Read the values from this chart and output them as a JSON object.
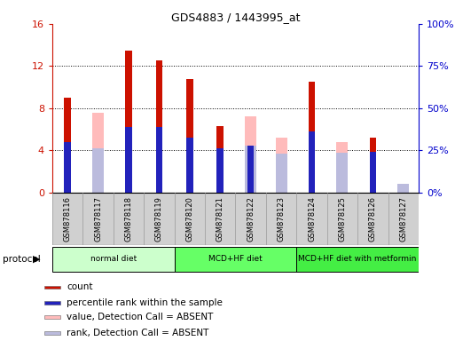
{
  "title": "GDS4883 / 1443995_at",
  "samples": [
    "GSM878116",
    "GSM878117",
    "GSM878118",
    "GSM878119",
    "GSM878120",
    "GSM878121",
    "GSM878122",
    "GSM878123",
    "GSM878124",
    "GSM878125",
    "GSM878126",
    "GSM878127"
  ],
  "count_values": [
    9.0,
    0,
    13.5,
    12.5,
    10.8,
    6.3,
    0,
    0,
    10.5,
    0,
    5.2,
    0
  ],
  "percentile_values": [
    4.8,
    0,
    6.2,
    6.2,
    5.2,
    4.2,
    4.5,
    0,
    5.8,
    0,
    3.9,
    0
  ],
  "absent_value_values": [
    0,
    7.6,
    0,
    0,
    0,
    0,
    7.2,
    5.2,
    0,
    4.8,
    0,
    0
  ],
  "absent_rank_values": [
    0,
    4.2,
    0,
    0,
    0,
    0,
    4.5,
    3.7,
    0,
    3.8,
    0,
    0.8
  ],
  "left_ylim": [
    0,
    16
  ],
  "right_ylim": [
    0,
    100
  ],
  "left_yticks": [
    0,
    4,
    8,
    12,
    16
  ],
  "left_yticklabels": [
    "0",
    "4",
    "8",
    "12",
    "16"
  ],
  "right_yticks": [
    0,
    25,
    50,
    75,
    100
  ],
  "right_yticklabels": [
    "0%",
    "25%",
    "50%",
    "75%",
    "100%"
  ],
  "protocols": [
    {
      "label": "normal diet",
      "start": 0,
      "end": 3,
      "color": "#ccffcc"
    },
    {
      "label": "MCD+HF diet",
      "start": 4,
      "end": 7,
      "color": "#66ff66"
    },
    {
      "label": "MCD+HF diet with metformin",
      "start": 8,
      "end": 11,
      "color": "#44ee44"
    }
  ],
  "color_count": "#cc1100",
  "color_percentile": "#2222bb",
  "color_absent_value": "#ffbbbb",
  "color_absent_rank": "#bbbbdd",
  "count_bar_width": 0.22,
  "absent_bar_width": 0.38,
  "percentile_bar_width": 0.22,
  "bg_color": "#d0d0d0",
  "left_tick_color": "#cc1100",
  "right_tick_color": "#0000cc",
  "legend_items": [
    {
      "label": "count",
      "color": "#cc1100"
    },
    {
      "label": "percentile rank within the sample",
      "color": "#2222bb"
    },
    {
      "label": "value, Detection Call = ABSENT",
      "color": "#ffbbbb"
    },
    {
      "label": "rank, Detection Call = ABSENT",
      "color": "#bbbbdd"
    }
  ]
}
